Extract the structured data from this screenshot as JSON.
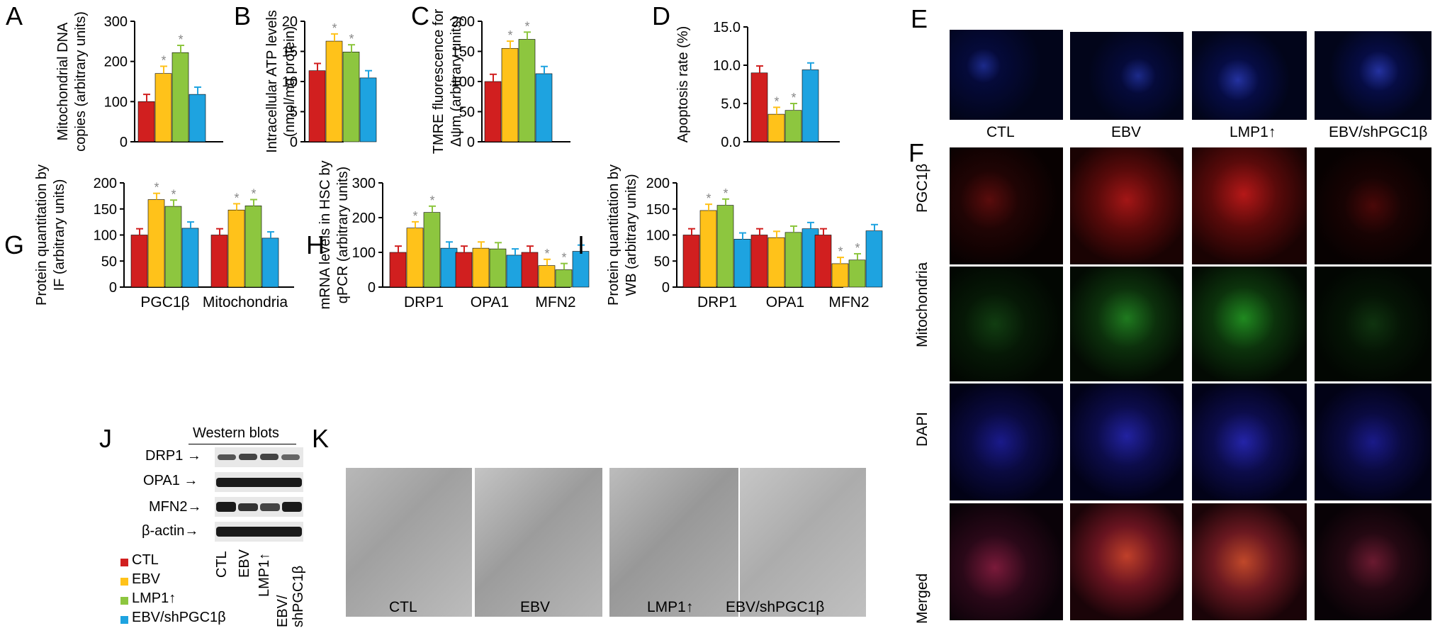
{
  "colors": {
    "CTL": "#d11f1f",
    "EBV": "#ffc21a",
    "LMP1": "#8dc63f",
    "shPGC": "#1ea3e0",
    "star": "#888888"
  },
  "panels": {
    "A": "A",
    "B": "B",
    "C": "C",
    "D": "D",
    "E": "E",
    "F": "F",
    "G": "G",
    "H": "H",
    "I": "I",
    "J": "J",
    "K": "K"
  },
  "chart_data": [
    {
      "panel": "A",
      "type": "bar",
      "ylabel": [
        "Mitochondrial DNA",
        "copies (arbitrary units)"
      ],
      "ylim": [
        0,
        300
      ],
      "yticks": [
        "0",
        "100",
        "200",
        "300"
      ],
      "series": [
        {
          "name": "CTL",
          "values": [
            100
          ]
        },
        {
          "name": "EBV",
          "values": [
            170
          ]
        },
        {
          "name": "LMP1↑",
          "values": [
            222
          ]
        },
        {
          "name": "EBV/shPGC1β",
          "values": [
            118
          ]
        }
      ],
      "significant": [
        "EBV",
        "LMP1↑"
      ]
    },
    {
      "panel": "B",
      "type": "bar",
      "ylabel": [
        "Intracellular ATP levels",
        "(nmol/mg protein)"
      ],
      "ylim": [
        0,
        20
      ],
      "yticks": [
        "0",
        "5",
        "10",
        "15",
        "20"
      ],
      "series": [
        {
          "name": "CTL",
          "values": [
            11.8
          ]
        },
        {
          "name": "EBV",
          "values": [
            16.7
          ]
        },
        {
          "name": "LMP1↑",
          "values": [
            14.9
          ]
        },
        {
          "name": "EBV/shPGC1β",
          "values": [
            10.6
          ]
        }
      ],
      "significant": [
        "EBV",
        "LMP1↑"
      ]
    },
    {
      "panel": "C",
      "type": "bar",
      "ylabel": [
        "TMRE fluorescence for",
        "Δψm (arbitrary units)"
      ],
      "ylim": [
        0,
        200
      ],
      "yticks": [
        "0",
        "50",
        "100",
        "150",
        "200"
      ],
      "series": [
        {
          "name": "CTL",
          "values": [
            100
          ]
        },
        {
          "name": "EBV",
          "values": [
            155
          ]
        },
        {
          "name": "LMP1↑",
          "values": [
            170
          ]
        },
        {
          "name": "EBV/shPGC1β",
          "values": [
            113
          ]
        }
      ],
      "significant": [
        "EBV",
        "LMP1↑"
      ]
    },
    {
      "panel": "D",
      "type": "bar",
      "ylabel": [
        "Apoptosis rate (%)"
      ],
      "ylim": [
        0,
        15
      ],
      "yticks": [
        "0.0",
        "5.0",
        "10.0",
        "15.0"
      ],
      "series": [
        {
          "name": "CTL",
          "values": [
            9.0
          ]
        },
        {
          "name": "EBV",
          "values": [
            3.6
          ]
        },
        {
          "name": "LMP1↑",
          "values": [
            4.1
          ]
        },
        {
          "name": "EBV/shPGC1β",
          "values": [
            9.4
          ]
        }
      ],
      "significant": [
        "EBV",
        "LMP1↑"
      ]
    },
    {
      "panel": "G",
      "type": "bar",
      "ylabel": [
        "Protein quantitation by",
        "IF (arbitrary units)"
      ],
      "ylim": [
        0,
        200
      ],
      "yticks": [
        "0",
        "50",
        "100",
        "150",
        "200"
      ],
      "categories": [
        "PGC1β",
        "Mitochondria"
      ],
      "series": [
        {
          "name": "CTL",
          "values": [
            100,
            100
          ]
        },
        {
          "name": "EBV",
          "values": [
            168,
            148
          ]
        },
        {
          "name": "LMP1↑",
          "values": [
            155,
            156
          ]
        },
        {
          "name": "EBV/shPGC1β",
          "values": [
            113,
            94
          ]
        }
      ],
      "significant": [
        "EBV",
        "LMP1↑"
      ]
    },
    {
      "panel": "H",
      "type": "bar",
      "ylabel": [
        "mRNA levels in HSC by",
        "qPCR (arbitrary units)"
      ],
      "ylim": [
        0,
        300
      ],
      "yticks": [
        "0",
        "100",
        "200",
        "300"
      ],
      "categories": [
        "DRP1",
        "OPA1",
        "MFN2"
      ],
      "series": [
        {
          "name": "CTL",
          "values": [
            100,
            100,
            100
          ]
        },
        {
          "name": "EBV",
          "values": [
            170,
            112,
            62
          ]
        },
        {
          "name": "LMP1↑",
          "values": [
            215,
            110,
            50
          ]
        },
        {
          "name": "EBV/shPGC1β",
          "values": [
            112,
            92,
            103
          ]
        }
      ],
      "significant": [
        "DRP1:EBV",
        "DRP1:LMP1↑",
        "MFN2:EBV",
        "MFN2:LMP1↑"
      ]
    },
    {
      "panel": "I",
      "type": "bar",
      "ylabel": [
        "Protein quantitation by",
        "WB (arbitrary units)"
      ],
      "ylim": [
        0,
        200
      ],
      "yticks": [
        "0",
        "50",
        "100",
        "150",
        "200"
      ],
      "categories": [
        "DRP1",
        "OPA1",
        "MFN2"
      ],
      "series": [
        {
          "name": "CTL",
          "values": [
            100,
            100,
            100
          ]
        },
        {
          "name": "EBV",
          "values": [
            147,
            95,
            45
          ]
        },
        {
          "name": "LMP1↑",
          "values": [
            157,
            105,
            52
          ]
        },
        {
          "name": "EBV/shPGC1β",
          "values": [
            92,
            112,
            108
          ]
        }
      ],
      "significant": [
        "DRP1:EBV",
        "DRP1:LMP1↑",
        "MFN2:EBV",
        "MFN2:LMP1↑"
      ]
    }
  ],
  "legend": [
    "CTL",
    "EBV",
    "LMP1↑",
    "EBV/shPGC1β"
  ],
  "panelE": {
    "labels": [
      "CTL",
      "EBV",
      "LMP1↑",
      "EBV/shPGC1β"
    ]
  },
  "panelF": {
    "rows": [
      "PGC1β",
      "Mitochondria",
      "DAPI",
      "Merged"
    ]
  },
  "panelJ": {
    "title": "Western blots",
    "proteins": [
      "DRP1 →",
      "OPA1 →",
      "MFN2→",
      "β-actin→"
    ],
    "lanes": [
      "CTL",
      "EBV",
      "LMP1↑",
      "EBV/ shPGC1β"
    ]
  },
  "panelK": {
    "labels": [
      "CTL",
      "EBV",
      "LMP1↑",
      "EBV/shPGC1β"
    ]
  },
  "star": "*"
}
